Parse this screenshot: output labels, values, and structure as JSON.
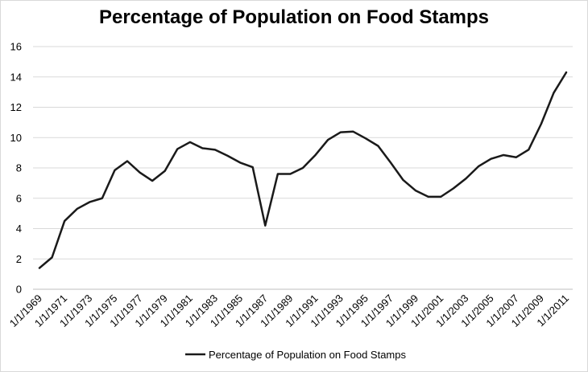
{
  "chart_data": {
    "type": "line",
    "title": "Percentage of Population on Food Stamps",
    "xlabel": "",
    "ylabel": "",
    "ylim": [
      0,
      16
    ],
    "yticks": [
      "0",
      "2",
      "4",
      "6",
      "8",
      "10",
      "12",
      "14",
      "16"
    ],
    "xticks": [
      "1/1/1969",
      "1/1/1971",
      "1/1/1973",
      "1/1/1975",
      "1/1/1977",
      "1/1/1979",
      "1/1/1981",
      "1/1/1983",
      "1/1/1985",
      "1/1/1987",
      "1/1/1989",
      "1/1/1991",
      "1/1/1993",
      "1/1/1995",
      "1/1/1997",
      "1/1/1999",
      "1/1/2001",
      "1/1/2003",
      "1/1/2005",
      "1/1/2007",
      "1/1/2009",
      "1/1/2011"
    ],
    "grid": true,
    "legend_position": "bottom",
    "series": [
      {
        "name": "Percentage of Population on Food Stamps",
        "color": "#1a1a1a",
        "x": [
          "1/1/1969",
          "1/1/1970",
          "1/1/1971",
          "1/1/1972",
          "1/1/1973",
          "1/1/1974",
          "1/1/1975",
          "1/1/1976",
          "1/1/1977",
          "1/1/1978",
          "1/1/1979",
          "1/1/1980",
          "1/1/1981",
          "1/1/1982",
          "1/1/1983",
          "1/1/1984",
          "1/1/1985",
          "1/1/1986",
          "1/1/1987",
          "1/1/1988",
          "1/1/1989",
          "1/1/1990",
          "1/1/1991",
          "1/1/1992",
          "1/1/1993",
          "1/1/1994",
          "1/1/1995",
          "1/1/1996",
          "1/1/1997",
          "1/1/1998",
          "1/1/1999",
          "1/1/2000",
          "1/1/2001",
          "1/1/2002",
          "1/1/2003",
          "1/1/2004",
          "1/1/2005",
          "1/1/2006",
          "1/1/2007",
          "1/1/2008",
          "1/1/2009",
          "1/1/2010",
          "1/1/2011"
        ],
        "values": [
          1.4,
          2.1,
          4.5,
          5.3,
          5.75,
          6.0,
          7.85,
          8.45,
          7.7,
          7.15,
          7.8,
          9.25,
          9.7,
          9.3,
          9.2,
          8.8,
          8.35,
          8.05,
          4.2,
          7.6,
          7.6,
          8.0,
          8.85,
          9.85,
          10.35,
          10.4,
          9.95,
          9.45,
          8.35,
          7.2,
          6.5,
          6.1,
          6.1,
          6.65,
          7.3,
          8.1,
          8.6,
          8.85,
          8.7,
          9.2,
          10.9,
          12.95,
          14.3
        ]
      }
    ]
  }
}
